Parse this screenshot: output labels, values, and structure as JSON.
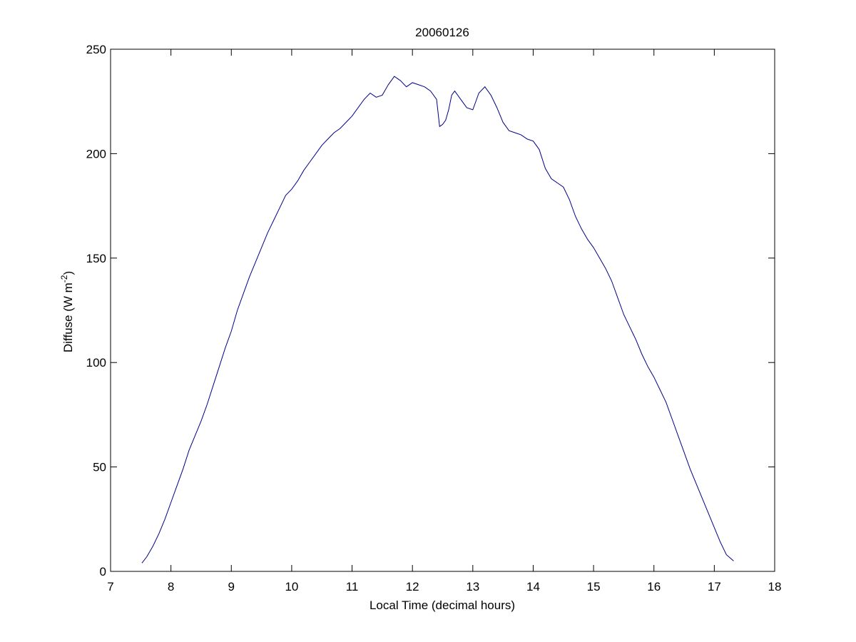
{
  "chart_data": {
    "type": "line",
    "title": "20060126",
    "xlabel": "Local Time (decimal hours)",
    "ylabel": {
      "main": "Diffuse (W m",
      "superscript": "-2",
      "close": ")"
    },
    "xlim": [
      7,
      18
    ],
    "ylim": [
      0,
      250
    ],
    "xticks": [
      7,
      8,
      9,
      10,
      11,
      12,
      13,
      14,
      15,
      16,
      17,
      18
    ],
    "yticks": [
      0,
      50,
      100,
      150,
      200,
      250
    ],
    "xtick_labels": [
      "7",
      "8",
      "9",
      "10",
      "11",
      "12",
      "13",
      "14",
      "15",
      "16",
      "17",
      "18"
    ],
    "ytick_labels": [
      "0",
      "50",
      "100",
      "150",
      "200",
      "250"
    ],
    "grid": false,
    "series": [
      {
        "color": "#00008b",
        "x": [
          7.52,
          7.6,
          7.7,
          7.8,
          7.9,
          8.0,
          8.1,
          8.2,
          8.3,
          8.4,
          8.5,
          8.6,
          8.7,
          8.8,
          8.9,
          9.0,
          9.1,
          9.2,
          9.3,
          9.4,
          9.5,
          9.6,
          9.7,
          9.8,
          9.9,
          10.0,
          10.1,
          10.2,
          10.3,
          10.4,
          10.5,
          10.6,
          10.7,
          10.8,
          10.9,
          11.0,
          11.1,
          11.2,
          11.3,
          11.4,
          11.5,
          11.6,
          11.7,
          11.8,
          11.9,
          12.0,
          12.1,
          12.2,
          12.3,
          12.4,
          12.45,
          12.5,
          12.55,
          12.6,
          12.65,
          12.7,
          12.8,
          12.9,
          13.0,
          13.1,
          13.2,
          13.3,
          13.4,
          13.5,
          13.6,
          13.7,
          13.8,
          13.9,
          14.0,
          14.1,
          14.2,
          14.3,
          14.4,
          14.5,
          14.6,
          14.7,
          14.8,
          14.9,
          15.0,
          15.1,
          15.2,
          15.3,
          15.4,
          15.5,
          15.6,
          15.7,
          15.8,
          15.9,
          16.0,
          16.1,
          16.2,
          16.3,
          16.4,
          16.5,
          16.6,
          16.7,
          16.8,
          16.9,
          17.0,
          17.1,
          17.2,
          17.32
        ],
        "y": [
          4,
          7,
          12,
          18,
          25,
          33,
          41,
          49,
          58,
          65,
          72,
          80,
          89,
          98,
          107,
          115,
          125,
          133,
          141,
          148,
          155,
          162,
          168,
          174,
          180,
          183,
          187,
          192,
          196,
          200,
          204,
          207,
          210,
          212,
          215,
          218,
          222,
          226,
          229,
          227,
          228,
          233,
          237,
          235,
          232,
          234,
          233,
          232,
          230,
          226,
          213,
          214,
          216,
          221,
          228,
          230,
          226,
          222,
          221,
          229,
          232,
          228,
          222,
          215,
          211,
          210,
          209,
          207,
          206,
          202,
          193,
          188,
          186,
          184,
          178,
          170,
          164,
          159,
          155,
          150,
          145,
          139,
          131,
          123,
          117,
          111,
          104,
          98,
          93,
          87,
          81,
          73,
          65,
          57,
          49,
          42,
          35,
          28,
          21,
          14,
          8,
          5
        ]
      }
    ]
  }
}
